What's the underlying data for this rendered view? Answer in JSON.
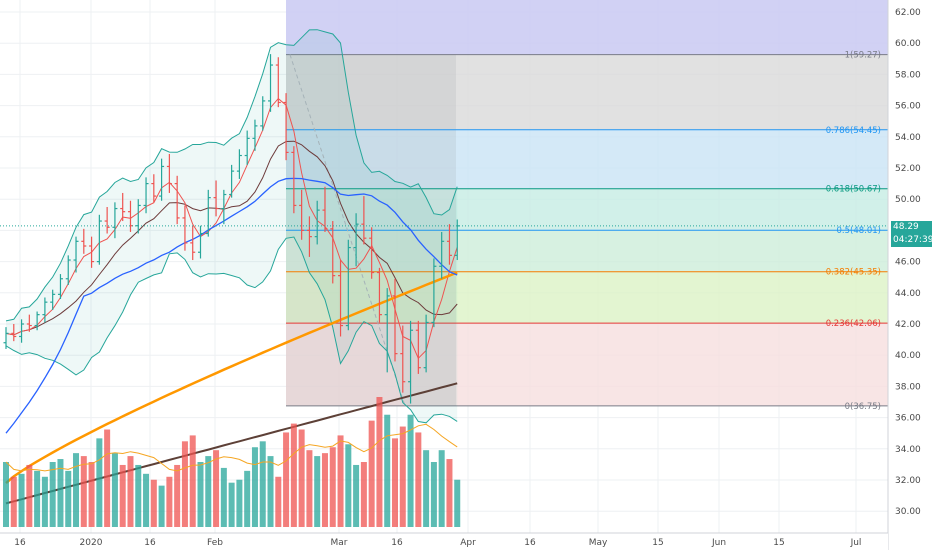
{
  "price_label": {
    "last": "48.29",
    "countdown": "04:27:39"
  },
  "chart_data": {
    "type": "candlestick",
    "title": "",
    "y_range": [
      29.0,
      63.0
    ],
    "y_ticks": [
      "30.00",
      "32.00",
      "34.00",
      "36.00",
      "38.00",
      "40.00",
      "42.00",
      "44.00",
      "46.00",
      "48.00",
      "50.00",
      "52.00",
      "54.00",
      "56.00",
      "58.00",
      "60.00",
      "62.00"
    ],
    "x_ticks": [
      "16",
      "2020",
      "16",
      "Feb",
      "Mar",
      "16",
      "Apr",
      "16",
      "May",
      "15",
      "Jun",
      "15",
      "Jul"
    ],
    "grid": true,
    "last_price": 48.29,
    "fib_retracement": {
      "high": 59.27,
      "low": 36.75,
      "levels": [
        {
          "ratio": "1",
          "price": "59.27",
          "label": "1(59.27)",
          "color": "#787b86",
          "fill": "#d9d9d9"
        },
        {
          "ratio": "0.786",
          "price": "54.45",
          "label": "0.786(54.45)",
          "color": "#2196f3",
          "fill": "#c9e3f5"
        },
        {
          "ratio": "0.618",
          "price": "50.67",
          "label": "0.618(50.67)",
          "color": "#089981",
          "fill": "#c6ece4"
        },
        {
          "ratio": "0.5",
          "price": "48.01",
          "label": "0.5(48.01)",
          "color": "#2196f3",
          "fill": "#cdeed9"
        },
        {
          "ratio": "0.382",
          "price": "45.35",
          "label": "0.382(45.35)",
          "color": "#f57c00",
          "fill": "#dcf2c6"
        },
        {
          "ratio": "0.236",
          "price": "42.06",
          "label": "0.236(42.06)",
          "color": "#e53935",
          "fill": "#f6dede"
        },
        {
          "ratio": "0",
          "price": "36.75",
          "label": "0(36.75)",
          "color": "#787b86",
          "fill": "#f4cfcf"
        }
      ],
      "upper_band_above_high": "#c9c9f2"
    },
    "series": [
      {
        "name": "",
        "kind": "ohlc",
        "up_color": "#26a69a",
        "down_color": "#ef5350",
        "bars": [
          [
            40.8,
            41.8,
            40.4,
            41.4
          ],
          [
            41.4,
            42.0,
            40.9,
            41.2
          ],
          [
            41.2,
            42.3,
            40.8,
            42.0
          ],
          [
            42.0,
            42.6,
            41.5,
            41.9
          ],
          [
            41.9,
            42.8,
            41.6,
            42.6
          ],
          [
            42.6,
            43.7,
            42.1,
            43.4
          ],
          [
            43.4,
            44.2,
            42.9,
            43.9
          ],
          [
            43.9,
            45.2,
            43.6,
            44.9
          ],
          [
            44.9,
            46.4,
            44.5,
            46.1
          ],
          [
            46.1,
            47.6,
            45.3,
            47.3
          ],
          [
            47.3,
            48.1,
            46.5,
            47.0
          ],
          [
            47.0,
            47.6,
            45.6,
            46.0
          ],
          [
            46.0,
            49.0,
            45.8,
            48.6
          ],
          [
            48.6,
            49.5,
            47.8,
            48.2
          ],
          [
            48.2,
            49.8,
            47.5,
            49.4
          ],
          [
            49.4,
            50.4,
            48.6,
            49.2
          ],
          [
            49.2,
            49.9,
            47.9,
            48.3
          ],
          [
            48.3,
            50.0,
            47.8,
            49.6
          ],
          [
            49.6,
            51.4,
            49.1,
            51.0
          ],
          [
            51.0,
            51.6,
            49.8,
            50.2
          ],
          [
            50.2,
            52.6,
            49.9,
            52.1
          ],
          [
            52.1,
            52.9,
            50.4,
            51.0
          ],
          [
            51.0,
            51.5,
            48.4,
            48.8
          ],
          [
            48.8,
            49.6,
            46.7,
            47.2
          ],
          [
            47.2,
            48.3,
            46.1,
            46.6
          ],
          [
            46.6,
            48.3,
            46.2,
            47.8
          ],
          [
            47.8,
            50.6,
            47.6,
            50.1
          ],
          [
            50.1,
            51.2,
            48.9,
            49.4
          ],
          [
            49.4,
            50.6,
            48.4,
            50.3
          ],
          [
            50.3,
            52.2,
            50.1,
            51.8
          ],
          [
            51.8,
            53.2,
            51.3,
            52.8
          ],
          [
            52.8,
            54.4,
            52.2,
            53.9
          ],
          [
            53.9,
            55.1,
            53.1,
            54.7
          ],
          [
            54.7,
            56.6,
            54.4,
            56.3
          ],
          [
            56.3,
            59.3,
            55.6,
            58.6
          ],
          [
            58.6,
            59.1,
            55.9,
            56.2
          ],
          [
            56.2,
            56.8,
            52.5,
            53.0
          ],
          [
            53.0,
            53.4,
            49.1,
            49.6
          ],
          [
            49.6,
            50.6,
            47.4,
            48.0
          ],
          [
            48.0,
            48.9,
            46.3,
            47.6
          ],
          [
            47.6,
            49.9,
            47.1,
            49.3
          ],
          [
            49.3,
            50.8,
            47.9,
            48.1
          ],
          [
            48.1,
            48.6,
            44.6,
            45.1
          ],
          [
            45.1,
            46.1,
            41.2,
            41.9
          ],
          [
            41.9,
            47.4,
            41.6,
            46.9
          ],
          [
            46.9,
            49.1,
            45.7,
            48.4
          ],
          [
            48.4,
            50.2,
            47.1,
            47.5
          ],
          [
            47.5,
            48.2,
            44.9,
            45.3
          ],
          [
            45.3,
            45.6,
            42.1,
            42.6
          ],
          [
            42.6,
            44.3,
            38.9,
            43.8
          ],
          [
            43.8,
            44.9,
            39.6,
            40.1
          ],
          [
            40.1,
            41.9,
            37.6,
            38.3
          ],
          [
            38.3,
            42.2,
            36.9,
            41.6
          ],
          [
            41.6,
            42.2,
            38.8,
            39.2
          ],
          [
            39.2,
            42.6,
            38.9,
            42.1
          ],
          [
            42.1,
            46.2,
            41.8,
            45.7
          ],
          [
            45.7,
            47.9,
            44.9,
            47.3
          ],
          [
            47.3,
            48.4,
            45.8,
            46.4
          ],
          [
            46.4,
            48.7,
            46.1,
            48.29
          ]
        ]
      },
      {
        "name": "",
        "kind": "line",
        "color": "#2962ff",
        "values_first_last": [
          35.0,
          48.2
        ]
      },
      {
        "name": "",
        "kind": "line",
        "color": "#ff9800",
        "values_first_last": [
          31.8,
          45.3
        ]
      },
      {
        "name": "",
        "kind": "line",
        "color": "#5d4037",
        "values_first_last": [
          30.5,
          38.2
        ]
      }
    ],
    "volume": {
      "values": [
        22,
        17,
        18,
        21,
        19,
        17,
        22,
        23,
        19,
        25,
        24,
        22,
        30,
        33,
        25,
        21,
        24,
        21,
        18,
        16,
        14,
        17,
        21,
        29,
        31,
        22,
        24,
        26,
        20,
        15,
        16,
        19,
        27,
        29,
        24,
        17,
        32,
        35,
        33,
        26,
        24,
        25,
        27,
        31,
        28,
        21,
        22,
        36,
        44,
        38,
        30,
        34,
        38,
        32,
        26,
        22,
        26,
        23,
        16
      ],
      "up_color": "#26a69a",
      "down_color": "#ef5350",
      "ma_color": "#f5a623"
    }
  }
}
